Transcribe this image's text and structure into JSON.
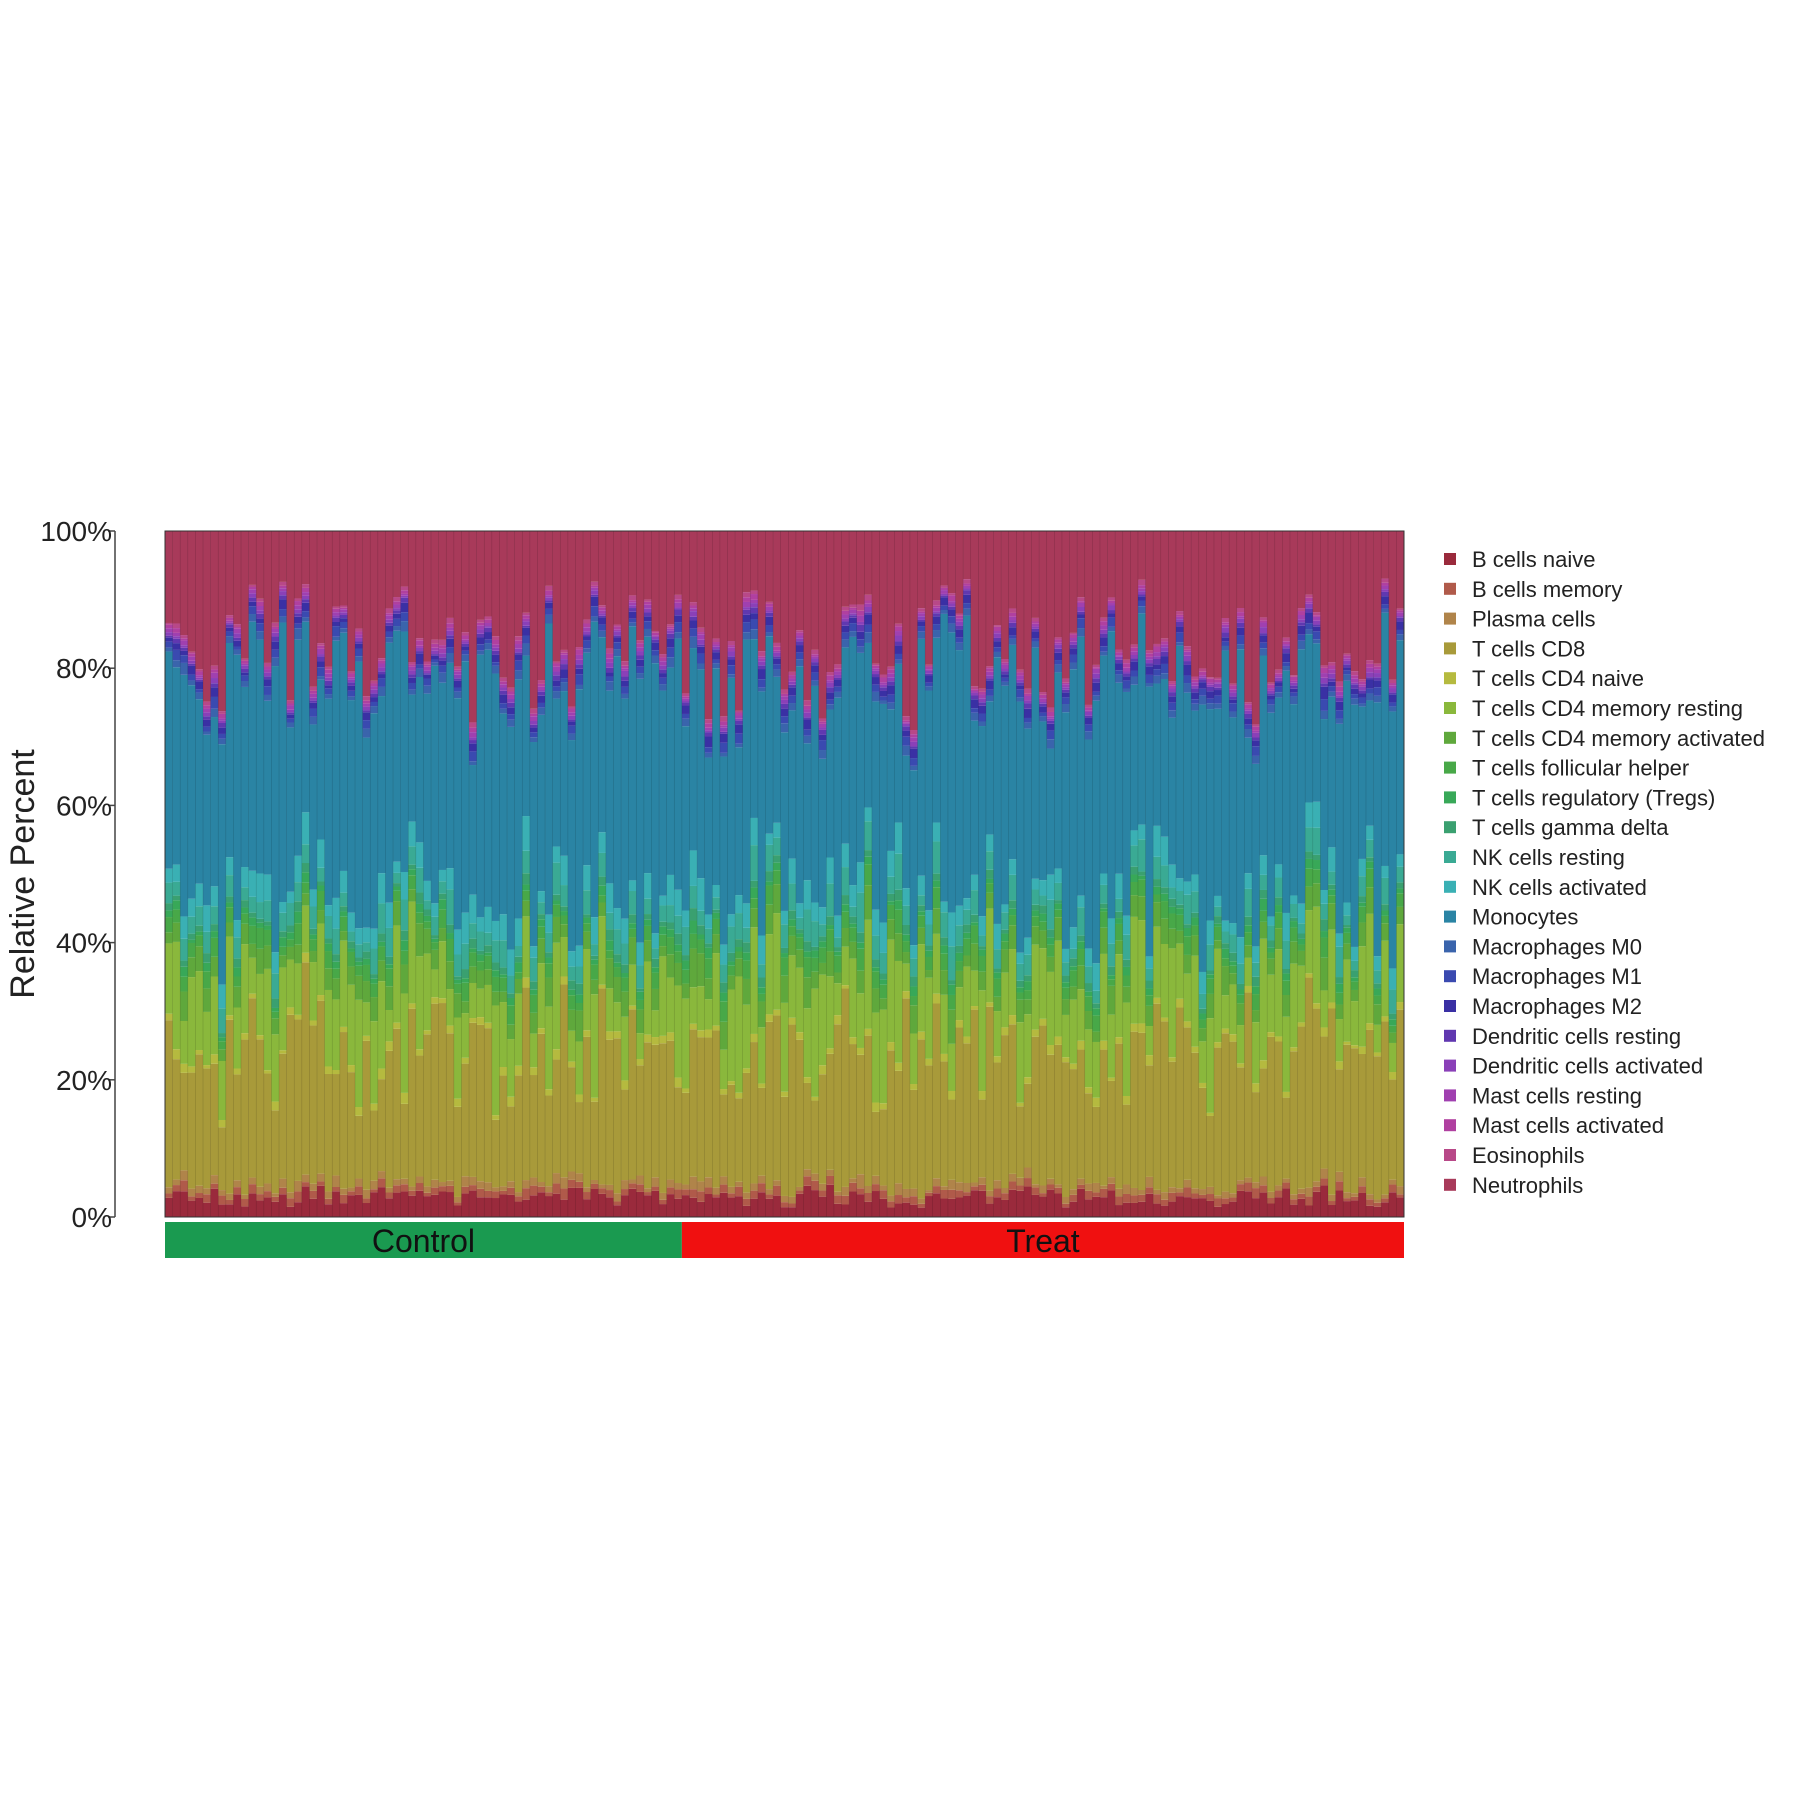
{
  "chart_data": {
    "type": "bar",
    "stacked": true,
    "normalized": true,
    "ylabel": "Relative Percent",
    "y_ticks": [
      "0%",
      "20%",
      "40%",
      "60%",
      "80%",
      "100%"
    ],
    "ylim": [
      0,
      100
    ],
    "groups": [
      {
        "name": "Control",
        "color": "#1a9a50",
        "sample_count": 68
      },
      {
        "name": "Treat",
        "color": "#f01010",
        "sample_count": 95
      }
    ],
    "legend_position": "right",
    "series": [
      {
        "name": "B cells naive",
        "color": "#9a2a3c"
      },
      {
        "name": "B cells memory",
        "color": "#b05a4a"
      },
      {
        "name": "Plasma cells",
        "color": "#b0844a"
      },
      {
        "name": "T cells CD8",
        "color": "#a89a3a"
      },
      {
        "name": "T cells CD4 naive",
        "color": "#b5ba3f"
      },
      {
        "name": "T cells CD4 memory resting",
        "color": "#8ab83c"
      },
      {
        "name": "T cells CD4 memory activated",
        "color": "#5fa83c"
      },
      {
        "name": "T cells follicular helper",
        "color": "#48a848"
      },
      {
        "name": "T cells regulatory (Tregs)",
        "color": "#38a858"
      },
      {
        "name": "T cells gamma delta",
        "color": "#3aa070"
      },
      {
        "name": "NK cells resting",
        "color": "#3aaa94"
      },
      {
        "name": "NK cells activated",
        "color": "#3ab0b4"
      },
      {
        "name": "Monocytes",
        "color": "#2a84a4"
      },
      {
        "name": "Macrophages M0",
        "color": "#3a64ac"
      },
      {
        "name": "Macrophages M1",
        "color": "#3a4ab0"
      },
      {
        "name": "Macrophages M2",
        "color": "#3a30a4"
      },
      {
        "name": "Dendritic cells resting",
        "color": "#6038b0"
      },
      {
        "name": "Dendritic cells activated",
        "color": "#8a40b8"
      },
      {
        "name": "Mast cells resting",
        "color": "#a040b0"
      },
      {
        "name": "Mast cells activated",
        "color": "#b040a0"
      },
      {
        "name": "Eosinophils",
        "color": "#b84888"
      },
      {
        "name": "Neutrophils",
        "color": "#a83a5a"
      }
    ],
    "approx_mean_cumulative_boundaries_pct": [
      3,
      4,
      5,
      24,
      25,
      35,
      38,
      40,
      41,
      42,
      45,
      48,
      78,
      79,
      80,
      81,
      81.5,
      82,
      82.5,
      83,
      83.5,
      100
    ]
  }
}
